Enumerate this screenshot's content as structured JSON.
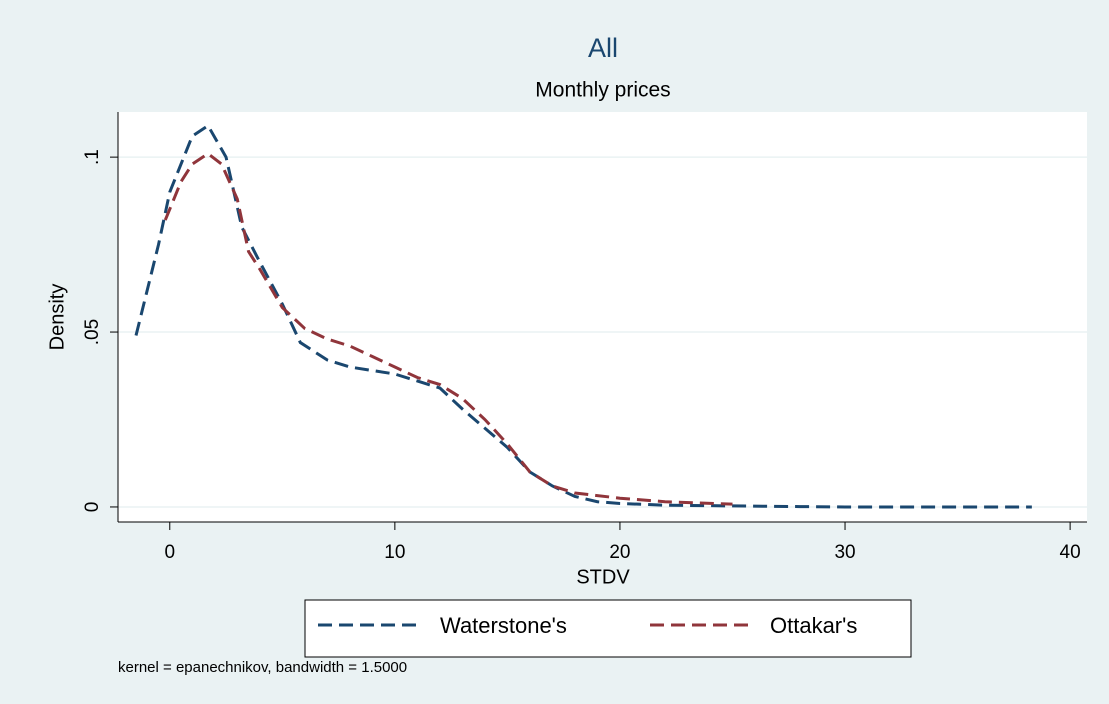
{
  "chart_data": {
    "type": "line",
    "title": "All",
    "subtitle": "Monthly prices",
    "x_label": "STDV",
    "y_label": "Density",
    "note": "kernel = epanechnikov, bandwidth = 1.5000",
    "xlim": [
      -2.3,
      40.75
    ],
    "xticks": [
      0,
      10,
      20,
      30,
      40
    ],
    "ylim": [
      -0.0043,
      0.1129
    ],
    "yticks": [
      0,
      {
        "value": 0.05,
        "label": ".05"
      },
      {
        "value": 0.1,
        "label": ".1"
      }
    ],
    "grid": true,
    "legend": "bottom",
    "series": [
      {
        "name": "Waterstone's",
        "color": "#1a476f",
        "x": [
          -1.5,
          -0.5,
          0,
          1,
          1.7,
          2.5,
          3.2,
          4,
          5,
          5.8,
          7,
          8,
          10,
          12,
          13,
          15,
          16,
          17,
          18,
          19,
          20,
          22,
          25,
          28,
          30,
          35,
          38.3
        ],
        "values": [
          0.049,
          0.075,
          0.09,
          0.106,
          0.109,
          0.1,
          0.08,
          0.07,
          0.058,
          0.047,
          0.042,
          0.04,
          0.038,
          0.034,
          0.028,
          0.017,
          0.01,
          0.006,
          0.003,
          0.0015,
          0.001,
          0.0005,
          0.0003,
          0.0001,
          0,
          0,
          0
        ]
      },
      {
        "name": "Ottakar's",
        "color": "#90353b",
        "x": [
          -0.2,
          0.5,
          1,
          1.7,
          2.3,
          3,
          3.5,
          4,
          5,
          6,
          7,
          8,
          9,
          10,
          11,
          12,
          13,
          14,
          15,
          16,
          17,
          18,
          20,
          22,
          25
        ],
        "values": [
          0.082,
          0.093,
          0.098,
          0.101,
          0.098,
          0.088,
          0.073,
          0.068,
          0.057,
          0.051,
          0.048,
          0.046,
          0.043,
          0.04,
          0.037,
          0.035,
          0.031,
          0.025,
          0.018,
          0.01,
          0.006,
          0.004,
          0.0025,
          0.0015,
          0.0008
        ]
      }
    ]
  }
}
